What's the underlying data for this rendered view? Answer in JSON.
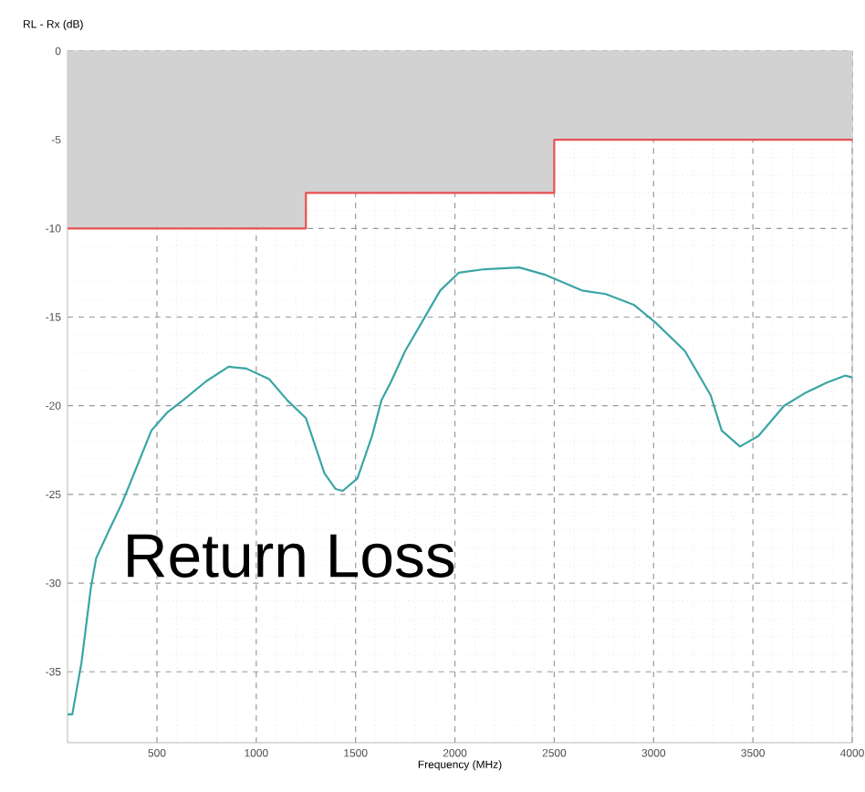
{
  "chart_data": {
    "type": "line",
    "xlabel": "Frequency (MHz)",
    "ylabel": "RL - Rx (dB)",
    "annotations": [
      "Return Loss"
    ],
    "xlim": [
      50,
      4000
    ],
    "ylim": [
      -39,
      0
    ],
    "xticks": [
      500,
      1000,
      1500,
      2000,
      2500,
      3000,
      3500,
      4000
    ],
    "yticks": [
      0,
      -5,
      -10,
      -15,
      -20,
      -25,
      -30,
      -35
    ],
    "grid": true,
    "marker": "none",
    "line_style": "solid",
    "series": [
      {
        "color": "#3aa5a5",
        "x": [
          50,
          74,
          120,
          167,
          194,
          260,
          324,
          400,
          472,
          550,
          630,
          750,
          861,
          950,
          1065,
          1157,
          1250,
          1343,
          1400,
          1435,
          1509,
          1583,
          1630,
          1676,
          1750,
          1833,
          1926,
          2019,
          2150,
          2324,
          2450,
          2639,
          2759,
          2900,
          3009,
          3157,
          3287,
          3343,
          3435,
          3528,
          3657,
          3760,
          3870,
          3963,
          4000
        ],
        "values": [
          -37.4,
          -37.4,
          -34.5,
          -30.3,
          -28.6,
          -27.0,
          -25.5,
          -23.4,
          -21.4,
          -20.4,
          -19.7,
          -18.6,
          -17.8,
          -17.9,
          -18.5,
          -19.7,
          -20.7,
          -23.8,
          -24.7,
          -24.8,
          -24.1,
          -21.7,
          -19.7,
          -18.7,
          -16.9,
          -15.3,
          -13.5,
          -12.5,
          -12.3,
          -12.2,
          -12.6,
          -13.5,
          -13.7,
          -14.3,
          -15.3,
          -16.9,
          -19.4,
          -21.4,
          -22.3,
          -21.7,
          -20.0,
          -19.3,
          -18.7,
          -18.3,
          -18.4
        ]
      },
      {
        "type": "step",
        "color": "#e85050",
        "x": [
          50,
          1250,
          2500,
          4000
        ],
        "values": [
          -10,
          -8,
          -5,
          -5
        ],
        "lower": [
          -10,
          -8,
          -5,
          -5
        ],
        "upper": [
          0,
          0,
          0,
          0
        ]
      }
    ]
  }
}
